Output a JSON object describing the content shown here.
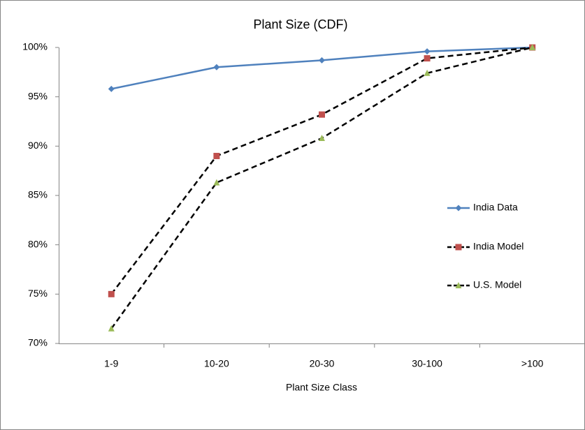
{
  "chart_data": {
    "type": "line",
    "title": "Plant Size (CDF)",
    "x_label": "Plant Size Class",
    "categories": [
      "1-9",
      "10-20",
      "20-30",
      "30-100",
      ">100"
    ],
    "series": [
      {
        "name": "India Data",
        "color": "#4f81bd",
        "line_color": "#4f81bd",
        "dashed": false,
        "marker": "diamond",
        "values": [
          95.8,
          98.0,
          98.7,
          99.6,
          100
        ]
      },
      {
        "name": "India Model",
        "color": "#c0504d",
        "line_color": "#000000",
        "dashed": true,
        "marker": "square",
        "values": [
          75.0,
          89.0,
          93.2,
          98.9,
          100
        ]
      },
      {
        "name": "U.S. Model",
        "color": "#9bbb59",
        "line_color": "#000000",
        "dashed": true,
        "marker": "triangle",
        "values": [
          71.5,
          86.3,
          90.8,
          97.4,
          100
        ]
      }
    ],
    "ylim": [
      70,
      100
    ],
    "yticks": [
      {
        "value": 70,
        "label": "70%"
      },
      {
        "value": 75,
        "label": "75%"
      },
      {
        "value": 80,
        "label": "80%"
      },
      {
        "value": 85,
        "label": "85%"
      },
      {
        "value": 90,
        "label": "90%"
      },
      {
        "value": 95,
        "label": "95%"
      },
      {
        "value": 100,
        "label": "100%"
      }
    ],
    "grid": false,
    "legend": "right"
  }
}
